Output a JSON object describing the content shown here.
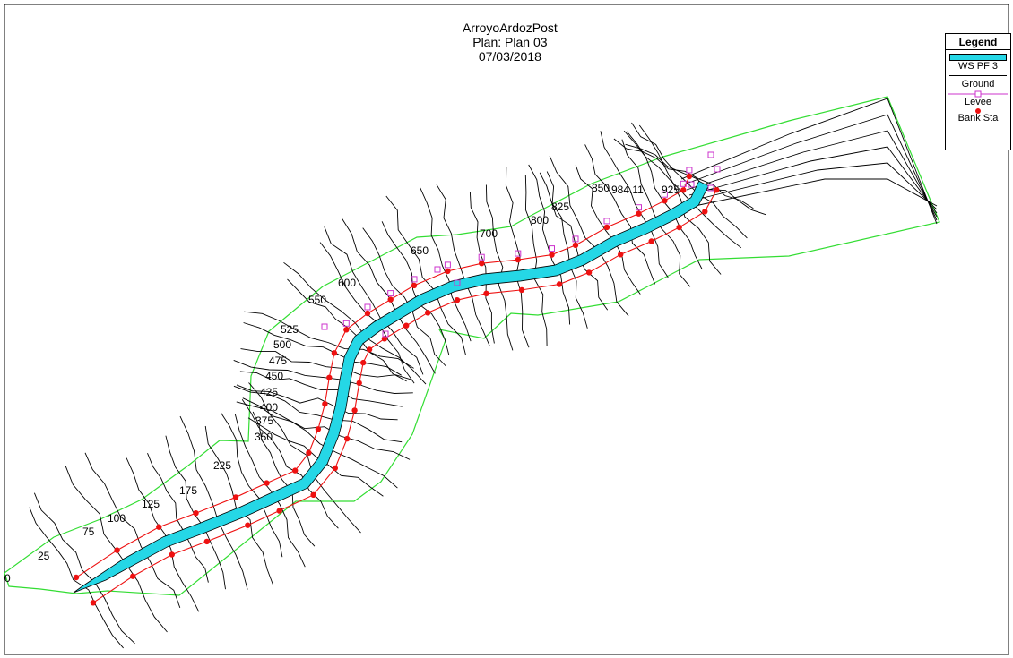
{
  "header": {
    "project": "ArroyoArdozPost",
    "plan": "Plan: Plan 03",
    "date": "07/03/2018"
  },
  "legend": {
    "title": "Legend",
    "items": [
      "WS PF 3",
      "Ground",
      "Levee",
      "Bank Sta"
    ]
  },
  "colors": {
    "water": "#25d7e6",
    "bank": "#ee1111",
    "levee": "#cc33cc",
    "boundary": "#33dd33",
    "ground": "#000000"
  },
  "stations": [
    "0",
    "25",
    "75",
    "100",
    "125",
    "175",
    "225",
    "350",
    "375",
    "400",
    "425",
    "450",
    "475",
    "500",
    "525",
    "550",
    "600",
    "650",
    "700",
    "800",
    "825",
    "850",
    "984.11",
    "925"
  ]
}
